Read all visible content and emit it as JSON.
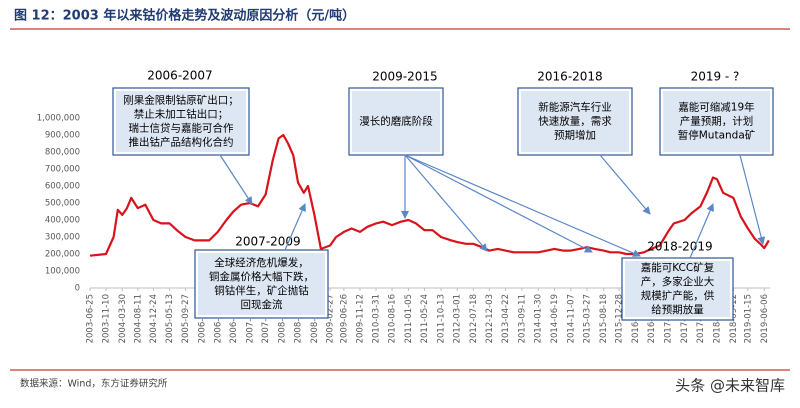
{
  "chart_data": {
    "type": "line",
    "title": "图 12：2003 年以来钴价格走势及波动原因分析（元/吨）",
    "source": "数据来源：Wind，东方证券研究所",
    "watermark": "头条 @未来智库",
    "color": "#d9121b",
    "x": [
      "2003-06-25",
      "2003-11-10",
      "2004-01-15",
      "2004-02-20",
      "2004-03-30",
      "2004-05-10",
      "2004-06-15",
      "2004-08-11",
      "2004-10-15",
      "2004-12-24",
      "2005-03-01",
      "2005-05-13",
      "2005-07-15",
      "2005-09-27",
      "2005-12-15",
      "2006-02-15",
      "2006-04-20",
      "2006-07-03",
      "2006-09-15",
      "2006-11-15",
      "2007-01-20",
      "2007-04-05",
      "2007-06-15",
      "2007-08-20",
      "2007-10-20",
      "2007-12-10",
      "2008-01-20",
      "2008-03-01",
      "2008-04-15",
      "2008-05-26",
      "2008-07-15",
      "2008-08-20",
      "2008-10-14",
      "2008-12-10",
      "2009-02-27",
      "2009-04-20",
      "2009-06-26",
      "2009-09-01",
      "2009-11-12",
      "2010-01-15",
      "2010-03-31",
      "2010-06-01",
      "2010-08-16",
      "2010-11-01",
      "2011-01-05",
      "2011-03-10",
      "2011-05-24",
      "2011-08-01",
      "2011-10-13",
      "2012-01-10",
      "2012-03-01",
      "2012-05-15",
      "2012-07-18",
      "2012-10-01",
      "2012-12-03",
      "2013-02-15",
      "2013-04-22",
      "2013-07-01",
      "2013-09-11",
      "2013-12-01",
      "2014-01-30",
      "2014-04-15",
      "2014-06-19",
      "2014-09-01",
      "2014-11-07",
      "2015-01-20",
      "2015-03-27",
      "2015-06-01",
      "2015-08-18",
      "2015-10-15",
      "2015-12-28",
      "2016-03-01",
      "2016-05-17",
      "2016-08-01",
      "2016-10-03",
      "2016-12-15",
      "2017-02-23",
      "2017-04-15",
      "2017-07-17",
      "2017-09-15",
      "2017-12-01",
      "2018-02-01",
      "2018-03-20",
      "2018-04-23",
      "2018-06-15",
      "2018-09-12",
      "2018-11-15",
      "2019-01-15",
      "2019-03-15",
      "2019-05-01",
      "2019-06-06",
      "2019-07-15"
    ],
    "values": [
      190000,
      200000,
      300000,
      460000,
      430000,
      470000,
      530000,
      470000,
      490000,
      400000,
      380000,
      380000,
      340000,
      300000,
      280000,
      280000,
      280000,
      330000,
      400000,
      450000,
      490000,
      500000,
      480000,
      550000,
      750000,
      880000,
      900000,
      850000,
      780000,
      620000,
      560000,
      600000,
      430000,
      230000,
      250000,
      300000,
      330000,
      350000,
      330000,
      360000,
      380000,
      390000,
      370000,
      390000,
      400000,
      380000,
      340000,
      340000,
      300000,
      280000,
      270000,
      260000,
      260000,
      240000,
      220000,
      230000,
      220000,
      210000,
      210000,
      210000,
      210000,
      220000,
      230000,
      220000,
      220000,
      230000,
      240000,
      230000,
      220000,
      210000,
      210000,
      200000,
      200000,
      210000,
      230000,
      250000,
      330000,
      380000,
      400000,
      440000,
      480000,
      570000,
      650000,
      640000,
      560000,
      530000,
      420000,
      350000,
      290000,
      260000,
      235000,
      280000
    ],
    "xlim": [
      "2003-06-25",
      "2019-07-25"
    ],
    "xticks": [
      "2003-06-25",
      "2003-11-10",
      "2004-03-30",
      "2004-08-11",
      "2004-12-24",
      "2005-05-13",
      "2005-09-27",
      "2006-02-15",
      "2006-07-03",
      "2006-11-15",
      "2007-04-05",
      "2007-08-20",
      "2008-01-08",
      "2008-05-26",
      "2008-10-14",
      "2009-02-27",
      "2009-06-26",
      "2009-11-12",
      "2010-03-31",
      "2010-08-16",
      "2011-01-05",
      "2011-05-24",
      "2011-10-13",
      "2012-03-01",
      "2012-07-18",
      "2012-12-03",
      "2013-04-22",
      "2013-09-11",
      "2014-01-30",
      "2014-06-19",
      "2014-11-07",
      "2015-03-27",
      "2015-08-18",
      "2015-12-28",
      "2016-05-17",
      "2016-10-03",
      "2017-02-23",
      "2017-07-17",
      "2017-12-01",
      "2018-04-23",
      "2018-09-12",
      "2019-01-15",
      "2019-06-06"
    ],
    "ylim": [
      0,
      1000000
    ],
    "yticks": [
      0,
      {
        "value": 100000,
        "label": "100,000"
      },
      {
        "value": 200000,
        "label": "200,000"
      },
      {
        "value": 300000,
        "label": "300,000"
      },
      {
        "value": 400000,
        "label": "400,000"
      },
      {
        "value": 500000,
        "label": "500,000"
      },
      {
        "value": 600000,
        "label": "600,000"
      },
      {
        "value": 700000,
        "label": "700,000"
      },
      {
        "value": 800000,
        "label": "800,000"
      },
      {
        "value": 900000,
        "label": "900,000"
      },
      {
        "value": 1000000,
        "label": "1,000,000"
      }
    ],
    "annotations": [
      {
        "period": "2006-2007",
        "lines": [
          "刚果金限制钴原矿出口；",
          "禁止未加工钴出口；",
          "瑞士信贷与嘉能可合作",
          "推出钴产品结构化合约"
        ]
      },
      {
        "period": "2007-2009",
        "lines": [
          "全球经济危机爆发，",
          "铜金属价格大幅下跌，",
          "铜钴伴生，矿企抛钴",
          "回现金流"
        ]
      },
      {
        "period": "2009-2015",
        "lines": [
          "漫长的磨底阶段"
        ]
      },
      {
        "period": "2016-2018",
        "lines": [
          "新能源汽车行业",
          "快速放量，需求",
          "预期增加"
        ]
      },
      {
        "period": "2019 - ?",
        "lines": [
          "嘉能可缩减19年",
          "产量预期，计划",
          "暂停Mutanda矿"
        ]
      },
      {
        "period": "2018-2019",
        "lines": [
          "嘉能可KCC矿复",
          "产，多家企业大",
          "规模扩产能，供",
          "给预期放量"
        ]
      }
    ]
  }
}
